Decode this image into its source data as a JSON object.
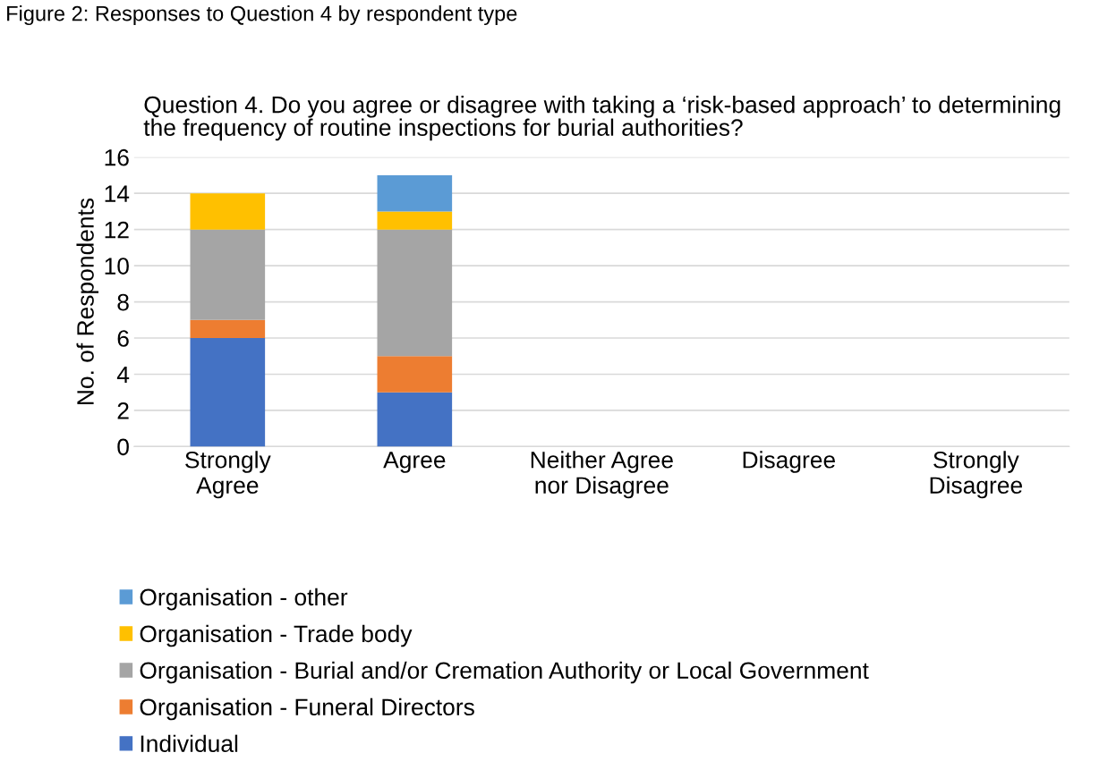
{
  "chart_data": {
    "type": "bar",
    "stacked": true,
    "title": "Question 4. Do you agree or disagree with taking a ‘risk-based approach’ to determining the frequency of routine inspections for burial authorities?",
    "ylabel": "No. of Respondents",
    "annotations": [
      "Figure 2: Responses to Question 4 by respondent type"
    ],
    "categories": [
      "Strongly\nAgree",
      "Agree",
      "Neither Agree\nnor Disagree",
      "Disagree",
      "Strongly\nDisagree"
    ],
    "series": [
      {
        "name": "Individual",
        "color": "#4472c4",
        "values": [
          6,
          3,
          0,
          0,
          0
        ]
      },
      {
        "name": "Organisation - Funeral Directors",
        "color": "#ed7d31",
        "values": [
          1,
          2,
          0,
          0,
          0
        ]
      },
      {
        "name": "Organisation - Burial and/or Cremation Authority or Local Government",
        "color": "#a5a5a5",
        "values": [
          5,
          7,
          0,
          0,
          0
        ]
      },
      {
        "name": "Organisation - Trade body",
        "color": "#ffc000",
        "values": [
          2,
          1,
          0,
          0,
          0
        ]
      },
      {
        "name": "Organisation - other",
        "color": "#5b9bd5",
        "values": [
          0,
          2,
          0,
          0,
          0
        ]
      }
    ],
    "ylim": [
      0,
      16
    ],
    "yticks": [
      0,
      2,
      4,
      6,
      8,
      10,
      12,
      14,
      16
    ],
    "grid": "y",
    "legend": "bottom"
  }
}
